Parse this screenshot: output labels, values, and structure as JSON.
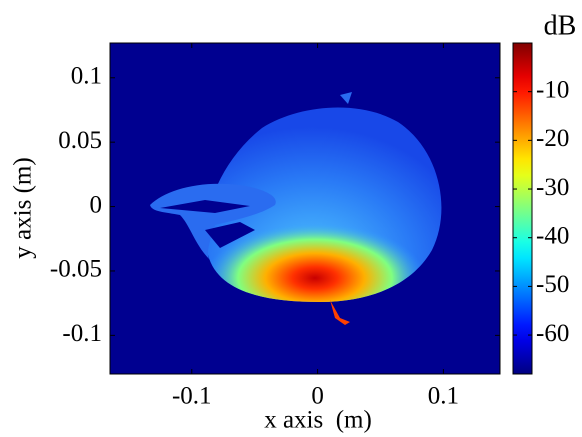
{
  "chart_data": {
    "type": "heatmap",
    "x_label": "x axis  (m)",
    "y_label": "y axis (m)",
    "xlim": [
      -0.165,
      0.145
    ],
    "xticks": [
      -0.1,
      0,
      0.1
    ],
    "ylim": [
      -0.13,
      0.127
    ],
    "yticks": [
      -0.1,
      -0.05,
      0,
      0.05,
      0.1
    ],
    "colorbar": {
      "label": "dB",
      "colormap": "jet",
      "lim": [
        -68,
        0
      ],
      "ticks": [
        -60,
        -50,
        -40,
        -30,
        -20,
        -10
      ]
    }
  }
}
